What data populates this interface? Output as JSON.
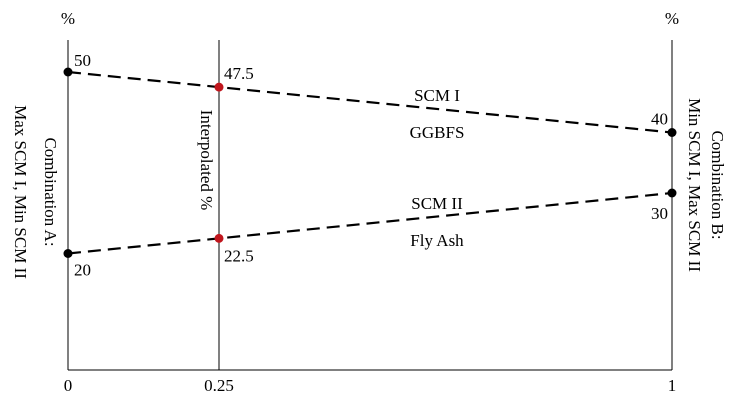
{
  "diagram": {
    "left_axis": {
      "unit": "%",
      "label_line1": "Combination A:",
      "label_line2": "Max SCM I, Min SCM II"
    },
    "right_axis": {
      "unit": "%",
      "label_line1": "Combination B:",
      "label_line2": "Min SCM I, Max SCM II"
    },
    "middle_axis": {
      "label": "Interpolated %"
    },
    "x_ticks": [
      "0",
      "0.25",
      "1"
    ],
    "interpolation_x": 0.25,
    "lines": [
      {
        "name": "SCM I",
        "material": "GGBFS",
        "start_value": 50,
        "end_value": 40,
        "start_label": "50",
        "end_label": "40",
        "interpolated_value": 47.5,
        "interpolated_label": "47.5"
      },
      {
        "name": "SCM II",
        "material": "Fly Ash",
        "start_value": 20,
        "end_value": 30,
        "start_label": "20",
        "end_label": "30",
        "interpolated_value": 22.5,
        "interpolated_label": "22.5"
      }
    ],
    "colors": {
      "line": "#000000",
      "interpolated": "#c0161d"
    }
  }
}
